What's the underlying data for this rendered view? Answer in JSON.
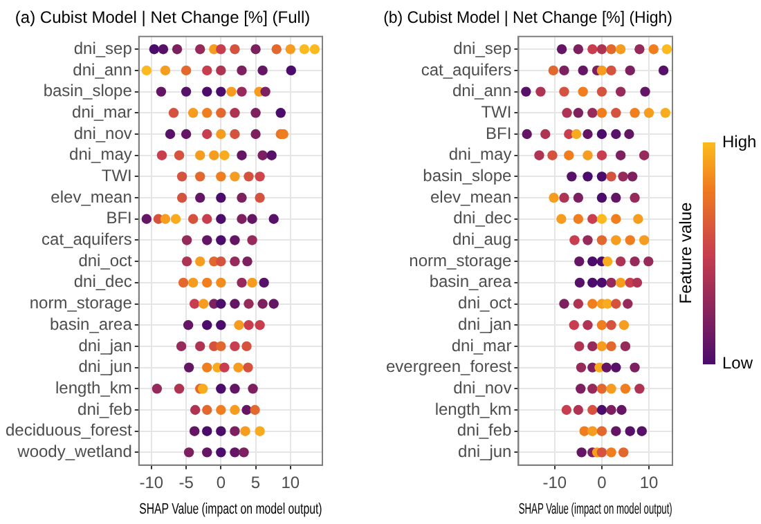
{
  "chart_data": [
    {
      "type": "scatter",
      "title": "(a) Cubist Model | Net Change [%] (Full)",
      "xlabel": "SHAP Value (impact on model output)",
      "orientation": "horizontal",
      "grid": true,
      "legend": false,
      "marker": "circle",
      "categories": [
        "dni_sep",
        "dni_ann",
        "basin_slope",
        "dni_mar",
        "dni_nov",
        "dni_may",
        "TWI",
        "elev_mean",
        "BFI",
        "cat_aquifers",
        "dni_oct",
        "dni_dec",
        "norm_storage",
        "basin_area",
        "dni_jan",
        "dni_jun",
        "length_km",
        "dni_feb",
        "deciduous_forest",
        "woody_wetland"
      ],
      "xlim": [
        -11.8,
        14.6
      ],
      "xticks": [
        -10,
        -5,
        0,
        5,
        10
      ],
      "series": [
        {
          "x": [
            "dni_sep",
            "dni_sep",
            "dni_sep",
            "dni_sep",
            "dni_sep",
            "dni_sep",
            "dni_sep",
            "dni_sep",
            "dni_sep",
            "dni_sep",
            "dni_sep",
            "dni_sep",
            "dni_ann",
            "dni_ann",
            "dni_ann",
            "dni_ann",
            "dni_ann",
            "dni_ann",
            "dni_ann",
            "dni_ann",
            "basin_slope",
            "basin_slope",
            "basin_slope",
            "basin_slope",
            "basin_slope",
            "basin_slope",
            "basin_slope",
            "basin_slope",
            "dni_mar",
            "dni_mar",
            "dni_mar",
            "dni_mar",
            "dni_mar",
            "dni_mar",
            "dni_mar",
            "dni_nov",
            "dni_nov",
            "dni_nov",
            "dni_nov",
            "dni_nov",
            "dni_nov",
            "dni_nov",
            "dni_nov",
            "dni_may",
            "dni_may",
            "dni_may",
            "dni_may",
            "dni_may",
            "dni_may",
            "dni_may",
            "dni_may",
            "TWI",
            "TWI",
            "TWI",
            "TWI",
            "TWI",
            "TWI",
            "elev_mean",
            "elev_mean",
            "elev_mean",
            "elev_mean",
            "elev_mean",
            "BFI",
            "BFI",
            "BFI",
            "BFI",
            "BFI",
            "BFI",
            "BFI",
            "BFI",
            "BFI",
            "BFI",
            "cat_aquifers",
            "cat_aquifers",
            "cat_aquifers",
            "cat_aquifers",
            "cat_aquifers",
            "dni_oct",
            "dni_oct",
            "dni_oct",
            "dni_oct",
            "dni_oct",
            "dni_oct",
            "dni_dec",
            "dni_dec",
            "dni_dec",
            "dni_dec",
            "dni_dec",
            "dni_dec",
            "dni_dec",
            "norm_storage",
            "norm_storage",
            "norm_storage",
            "norm_storage",
            "norm_storage",
            "norm_storage",
            "norm_storage",
            "norm_storage",
            "basin_area",
            "basin_area",
            "basin_area",
            "basin_area",
            "basin_area",
            "basin_area",
            "dni_jan",
            "dni_jan",
            "dni_jan",
            "dni_jan",
            "dni_jan",
            "dni_jan",
            "dni_jun",
            "dni_jun",
            "dni_jun",
            "dni_jun",
            "dni_jun",
            "dni_jun",
            "length_km",
            "length_km",
            "length_km",
            "length_km",
            "length_km",
            "length_km",
            "length_km",
            "dni_feb",
            "dni_feb",
            "dni_feb",
            "dni_feb",
            "dni_feb",
            "dni_feb",
            "deciduous_forest",
            "deciduous_forest",
            "deciduous_forest",
            "deciduous_forest",
            "deciduous_forest",
            "deciduous_forest",
            "woody_wetland",
            "woody_wetland",
            "woody_wetland",
            "woody_wetland",
            "woody_wetland"
          ],
          "values": [
            -9.6,
            -8.3,
            -6.3,
            -3,
            -1,
            0,
            2,
            5,
            8,
            10,
            12,
            13.5,
            -10.7,
            -8,
            -5,
            -2,
            0,
            3,
            6,
            10.1,
            -8.6,
            -5,
            -2,
            0,
            1.5,
            3,
            5.5,
            6.4,
            -6.8,
            -4,
            -2,
            0,
            2,
            5,
            8.6,
            -7.3,
            -5,
            -2,
            0,
            2,
            5,
            8.6,
            9,
            -8.5,
            -6,
            -3,
            -1,
            0.5,
            3,
            6,
            7.3,
            -5.6,
            -3,
            0,
            2,
            4,
            5.6,
            -5.6,
            -3,
            0,
            3,
            5.6,
            -10.7,
            -9,
            -8,
            -6.5,
            -4,
            -2,
            0,
            3,
            4.5,
            7.6,
            -4.9,
            -2,
            0,
            2,
            4.5,
            -4.9,
            -3,
            -1,
            0,
            2,
            3.8,
            -5.4,
            -4,
            -2,
            0,
            3,
            4.5,
            6.2,
            -3.8,
            -2.5,
            -1,
            0,
            2,
            4,
            6,
            7.6,
            -4.7,
            -2,
            0,
            2.6,
            4,
            5.6,
            -5.7,
            -3,
            -1,
            0,
            2,
            3.7,
            -4.6,
            -2,
            -0.5,
            0.5,
            2.5,
            3.9,
            -9.2,
            -6,
            -3,
            -2.6,
            0,
            2,
            4.6,
            -3.7,
            -2,
            0,
            2,
            3.7,
            4.9,
            -3.8,
            -2,
            0,
            2,
            3.5,
            5.6,
            -4.6,
            -2,
            0,
            2,
            3.3
          ],
          "colors": [
            "#4b0c6b",
            "#581168",
            "#7d205f",
            "#962a5a",
            "#f69c1e",
            "#c83e4e",
            "#d5533e",
            "#7d205f",
            "#e3682e",
            "#f69c1e",
            "#fcba1e",
            "#fcba1e",
            "#fcba1e",
            "#f69c1e",
            "#e3682e",
            "#c83e4e",
            "#af3454",
            "#7d205f",
            "#641665",
            "#4b0c6b",
            "#641665",
            "#581168",
            "#4b0c6b",
            "#4b0c6b",
            "#f69c1e",
            "#962a5a",
            "#f69c1e",
            "#7d205f",
            "#d5533e",
            "#f69c1e",
            "#f07d1e",
            "#e3682e",
            "#af3454",
            "#7d205f",
            "#4b0c6b",
            "#581168",
            "#641665",
            "#c83e4e",
            "#f69c1e",
            "#d5533e",
            "#7d205f",
            "#e97326",
            "#f07d1e",
            "#c83e4e",
            "#d5533e",
            "#f69c1e",
            "#f69c1e",
            "#f9ab1e",
            "#641665",
            "#7d205f",
            "#581168",
            "#d5533e",
            "#e3682e",
            "#f07d1e",
            "#f69c1e",
            "#d5533e",
            "#cf4549",
            "#d5533e",
            "#641665",
            "#4b0c6b",
            "#7d205f",
            "#d5533e",
            "#641665",
            "#d5533e",
            "#f69c1e",
            "#f9ab1e",
            "#d5533e",
            "#c83e4e",
            "#4b0c6b",
            "#7d205f",
            "#641665",
            "#581168",
            "#962a5a",
            "#641665",
            "#4b0c6b",
            "#641665",
            "#962a5a",
            "#af3454",
            "#f69c1e",
            "#e3682e",
            "#d5533e",
            "#962a5a",
            "#7d205f",
            "#e3682e",
            "#f69c1e",
            "#f07d1e",
            "#f38c1e",
            "#962a5a",
            "#f69c1e",
            "#581168",
            "#c83e4e",
            "#f69c1e",
            "#7d205f",
            "#4b0c6b",
            "#641665",
            "#962a5a",
            "#7d205f",
            "#641665",
            "#641665",
            "#4b0c6b",
            "#4b0c6b",
            "#f69c1e",
            "#c83e4e",
            "#c83e4e",
            "#962a5a",
            "#af3454",
            "#d5533e",
            "#e3682e",
            "#c83e4e",
            "#d5533e",
            "#641665",
            "#f07d1e",
            "#f9ab1e",
            "#c83e4e",
            "#f69c1e",
            "#d5533e",
            "#962a5a",
            "#af3454",
            "#e3682e",
            "#f9ab1e",
            "#4b0c6b",
            "#641665",
            "#7d205f",
            "#af3454",
            "#e3682e",
            "#f07d1e",
            "#f69c1e",
            "#641665",
            "#e3682e",
            "#641665",
            "#4b0c6b",
            "#4b0c6b",
            "#7d205f",
            "#f69c1e",
            "#f9ab1e",
            "#7d205f",
            "#641665",
            "#4b0c6b",
            "#641665",
            "#7d205f"
          ]
        }
      ]
    },
    {
      "type": "scatter",
      "title": "(b) Cubist Model | Net Change [%] (High)",
      "xlabel": "SHAP Value (impact on model output)",
      "orientation": "horizontal",
      "grid": true,
      "legend": false,
      "marker": "circle",
      "categories": [
        "dni_sep",
        "cat_aquifers",
        "dni_ann",
        "TWI",
        "BFI",
        "dni_may",
        "basin_slope",
        "elev_mean",
        "dni_dec",
        "dni_aug",
        "norm_storage",
        "basin_area",
        "dni_oct",
        "dni_jan",
        "dni_mar",
        "evergreen_forest",
        "dni_nov",
        "length_km",
        "dni_feb",
        "dni_jun"
      ],
      "xlim": [
        -17.7,
        15
      ],
      "xticks": [
        -10,
        0,
        10
      ],
      "clabel": "Feature value",
      "clim": [
        0,
        1
      ],
      "cticks": [
        {
          "value": 0,
          "label": "Low"
        },
        {
          "value": 1,
          "label": "High"
        }
      ],
      "series": [
        {
          "x": [
            "dni_sep",
            "dni_sep",
            "dni_sep",
            "dni_sep",
            "dni_sep",
            "dni_sep",
            "dni_sep",
            "dni_sep",
            "dni_sep",
            "cat_aquifers",
            "cat_aquifers",
            "cat_aquifers",
            "cat_aquifers",
            "cat_aquifers",
            "cat_aquifers",
            "cat_aquifers",
            "cat_aquifers",
            "dni_ann",
            "dni_ann",
            "dni_ann",
            "dni_ann",
            "dni_ann",
            "dni_ann",
            "dni_ann",
            "TWI",
            "TWI",
            "TWI",
            "TWI",
            "TWI",
            "TWI",
            "TWI",
            "TWI",
            "BFI",
            "BFI",
            "BFI",
            "BFI",
            "BFI",
            "BFI",
            "BFI",
            "BFI",
            "dni_may",
            "dni_may",
            "dni_may",
            "dni_may",
            "dni_may",
            "dni_may",
            "dni_may",
            "basin_slope",
            "basin_slope",
            "basin_slope",
            "basin_slope",
            "basin_slope",
            "basin_slope",
            "elev_mean",
            "elev_mean",
            "elev_mean",
            "elev_mean",
            "elev_mean",
            "elev_mean",
            "dni_dec",
            "dni_dec",
            "dni_dec",
            "dni_dec",
            "dni_dec",
            "dni_dec",
            "dni_aug",
            "dni_aug",
            "dni_aug",
            "dni_aug",
            "dni_aug",
            "dni_aug",
            "norm_storage",
            "norm_storage",
            "norm_storage",
            "norm_storage",
            "norm_storage",
            "norm_storage",
            "norm_storage",
            "basin_area",
            "basin_area",
            "basin_area",
            "basin_area",
            "basin_area",
            "basin_area",
            "basin_area",
            "dni_oct",
            "dni_oct",
            "dni_oct",
            "dni_oct",
            "dni_oct",
            "dni_oct",
            "dni_oct",
            "dni_jan",
            "dni_jan",
            "dni_jan",
            "dni_jan",
            "dni_jan",
            "dni_mar",
            "dni_mar",
            "dni_mar",
            "dni_mar",
            "dni_mar",
            "evergreen_forest",
            "evergreen_forest",
            "evergreen_forest",
            "evergreen_forest",
            "evergreen_forest",
            "evergreen_forest",
            "dni_nov",
            "dni_nov",
            "dni_nov",
            "dni_nov",
            "dni_nov",
            "dni_nov",
            "length_km",
            "length_km",
            "length_km",
            "length_km",
            "length_km",
            "length_km",
            "dni_feb",
            "dni_feb",
            "dni_feb",
            "dni_feb",
            "dni_feb",
            "dni_feb",
            "dni_jun",
            "dni_jun",
            "dni_jun",
            "dni_jun",
            "dni_jun",
            "dni_jun"
          ],
          "values": [
            -8.5,
            -5,
            -2,
            0,
            2,
            4,
            8,
            11,
            13.8,
            -10.3,
            -8,
            -4,
            -1,
            0,
            2,
            6,
            13.1,
            -16.1,
            -13,
            -8,
            -4,
            0,
            4,
            9.2,
            -7.4,
            -5,
            -2,
            0,
            3,
            7,
            10,
            13.5,
            -15.9,
            -12,
            -7,
            -5.4,
            -3,
            0,
            3,
            5.8,
            -13.3,
            -10.5,
            -7,
            -3,
            0,
            4,
            9,
            -6.4,
            -3,
            0,
            2,
            4.5,
            6.5,
            -10.2,
            -8,
            -5,
            0,
            3,
            7,
            -8.6,
            -5,
            -2,
            0,
            3,
            7.7,
            -5.8,
            -3,
            0,
            3,
            6,
            9,
            -4.8,
            -2,
            0,
            1.2,
            4,
            7,
            9.9,
            -4.7,
            -2,
            0,
            2,
            4,
            6,
            7.5,
            -8,
            -5,
            -2,
            0,
            1.2,
            3,
            5.5,
            -5.9,
            -3,
            0,
            2,
            4.7,
            -4.8,
            -2,
            0,
            2,
            5,
            -4.4,
            -2,
            -0.5,
            1,
            3,
            7,
            -4.5,
            -2,
            0,
            2,
            5,
            8,
            -7.5,
            -5,
            -2,
            0,
            2,
            4.2,
            -3.7,
            -2,
            0,
            3,
            6,
            8.5,
            -4.3,
            -2,
            -1,
            0,
            2,
            4.6
          ],
          "cvalues": [
            0.1,
            0.2,
            0.5,
            0.4,
            0.7,
            0.9,
            0.3,
            0.8,
            1,
            0.7,
            0.2,
            0.1,
            0.2,
            0.9,
            0.6,
            0.2,
            0.05,
            0.05,
            0.4,
            0.6,
            0.8,
            0.6,
            0.3,
            0.1,
            0.4,
            0.2,
            0.3,
            0.8,
            0.6,
            0.8,
            0.9,
            0.95,
            0.1,
            0.4,
            0.5,
            0.95,
            0.1,
            0,
            0.05,
            0.1,
            0.4,
            0.6,
            0.8,
            0.9,
            0.5,
            0.2,
            0.3,
            0.05,
            0,
            0,
            0.6,
            0.3,
            0.2,
            0.9,
            0.4,
            0.2,
            0,
            0.1,
            0.3,
            0.9,
            0.8,
            0.5,
            1,
            0.8,
            0.9,
            0.5,
            0.3,
            0.7,
            0.9,
            0.8,
            0.9,
            0.1,
            0,
            0,
            0.95,
            0.4,
            0.3,
            0.3,
            0.05,
            0,
            0,
            0.3,
            0.9,
            0.5,
            0.4,
            0.2,
            0.4,
            0.8,
            0.9,
            0.95,
            0.6,
            0.3,
            0.5,
            0.4,
            0.8,
            0.6,
            0.9,
            0.4,
            0.3,
            0.9,
            0.7,
            0.3,
            0.3,
            0.2,
            0.95,
            0.1,
            0.05,
            0.2,
            0.2,
            0.3,
            0.7,
            0.9,
            0.8,
            0.4,
            0.5,
            0.4,
            0.6,
            0,
            0.2,
            0.1,
            0.8,
            0.9,
            0.7,
            0.1,
            0.05,
            0.05,
            0.1,
            0.2,
            0.9,
            0.6,
            0.8,
            0.7
          ]
        }
      ]
    }
  ]
}
